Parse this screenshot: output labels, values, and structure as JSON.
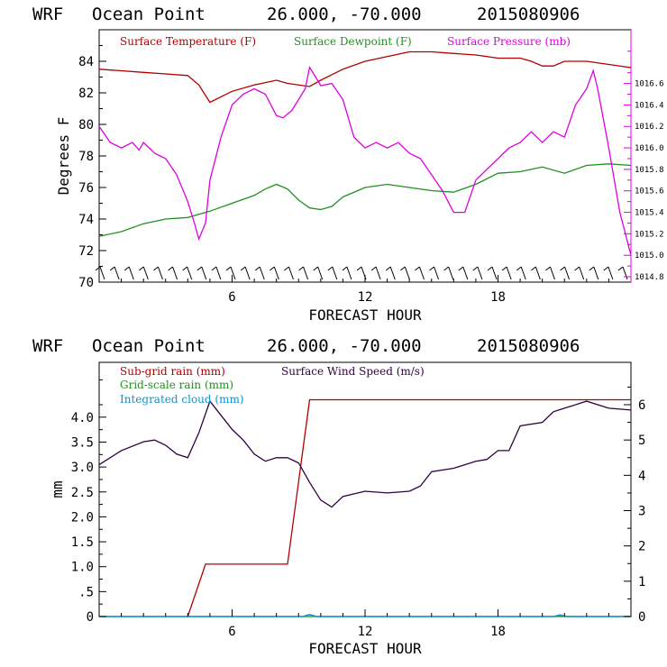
{
  "top_chart": {
    "title": {
      "model": "WRF",
      "location": "Ocean Point",
      "coords": "26.000, -70.000",
      "init": "2015080906"
    },
    "xlabel": "FORECAST HOUR",
    "ylabel": "Degrees F",
    "legend": [
      {
        "label": "Surface Temperature (F)",
        "color": "#b00000"
      },
      {
        "label": "Surface Dewpoint (F)",
        "color": "#209020"
      },
      {
        "label": "Surface Pressure (mb)",
        "color": "#e000e0"
      }
    ]
  },
  "bottom_chart": {
    "title": {
      "model": "WRF",
      "location": "Ocean Point",
      "coords": "26.000, -70.000",
      "init": "2015080906"
    },
    "xlabel": "FORECAST HOUR",
    "ylabel": "mm",
    "legend": [
      {
        "label": "Sub-grid rain (mm)",
        "color": "#b00000"
      },
      {
        "label": "Grid-scale rain (mm)",
        "color": "#209020"
      },
      {
        "label": "Integrated cloud (mm)",
        "color": "#1090d0"
      },
      {
        "label": "Surface Wind Speed (m/s)",
        "color": "#300040"
      }
    ]
  },
  "chart_data": [
    {
      "type": "line",
      "title": "WRF Ocean Point 26.000, -70.000 2015080906",
      "xlabel": "FORECAST HOUR",
      "ylabel": "Degrees F",
      "xlim": [
        0,
        24
      ],
      "ylim": [
        70,
        86
      ],
      "xticks": [
        6,
        12,
        18
      ],
      "yticks": [
        70,
        72,
        74,
        76,
        78,
        80,
        82,
        84
      ],
      "y2label": "Surface Pressure (mb)",
      "y2lim": [
        1014.75,
        1017.1
      ],
      "y2ticks": [
        1014.8,
        1015.0,
        1015.2,
        1015.4,
        1015.6,
        1015.8,
        1016.0,
        1016.2,
        1016.4,
        1016.6
      ],
      "wind_barbs": {
        "count": 37,
        "note": "surface wind barbs along bottom axis"
      },
      "series": [
        {
          "name": "Surface Temperature (F)",
          "color": "#b00000",
          "axis": "left",
          "x": [
            0,
            1,
            2,
            3,
            4,
            4.5,
            5,
            6,
            7,
            8,
            8.5,
            9.5,
            10,
            11,
            12,
            13,
            14,
            14.5,
            15,
            16,
            17,
            18,
            19,
            19.5,
            20,
            20.5,
            21,
            22,
            23,
            24
          ],
          "y": [
            83.5,
            83.4,
            83.3,
            83.2,
            83.1,
            82.5,
            81.4,
            82.1,
            82.5,
            82.8,
            82.6,
            82.4,
            82.8,
            83.5,
            84.0,
            84.3,
            84.6,
            84.6,
            84.6,
            84.5,
            84.4,
            84.2,
            84.2,
            84.0,
            83.7,
            83.7,
            84.0,
            84.0,
            83.8,
            83.6
          ]
        },
        {
          "name": "Surface Dewpoint (F)",
          "color": "#209020",
          "axis": "left",
          "x": [
            0,
            1,
            2,
            3,
            4,
            5,
            6,
            7,
            7.5,
            8,
            8.5,
            9,
            9.5,
            10,
            10.5,
            11,
            12,
            13,
            14,
            15,
            16,
            17,
            18,
            19,
            20,
            21,
            22,
            23,
            24
          ],
          "y": [
            72.9,
            73.2,
            73.7,
            74.0,
            74.1,
            74.5,
            75.0,
            75.5,
            75.9,
            76.2,
            75.9,
            75.2,
            74.7,
            74.6,
            74.8,
            75.4,
            76.0,
            76.2,
            76.0,
            75.8,
            75.7,
            76.2,
            76.9,
            77.0,
            77.3,
            76.9,
            77.4,
            77.5,
            77.4
          ]
        },
        {
          "name": "Surface Pressure (mb)",
          "color": "#e000e0",
          "axis": "right",
          "x": [
            0,
            0.5,
            1,
            1.5,
            1.8,
            2,
            2.5,
            3,
            3.5,
            4,
            4.3,
            4.5,
            4.8,
            5,
            5.5,
            6,
            6.5,
            7,
            7.5,
            8,
            8.3,
            8.7,
            9,
            9.3,
            9.5,
            9.8,
            10,
            10.5,
            11,
            11.5,
            12,
            12.5,
            13,
            13.5,
            14,
            14.5,
            15,
            15.5,
            16,
            16.5,
            17,
            17.5,
            18,
            18.5,
            19,
            19.5,
            20,
            20.5,
            21,
            21.5,
            22,
            22.3,
            22.5,
            23,
            23.5,
            24
          ],
          "y": [
            1016.2,
            1016.05,
            1016.0,
            1016.05,
            1015.98,
            1016.05,
            1015.95,
            1015.9,
            1015.75,
            1015.5,
            1015.3,
            1015.15,
            1015.3,
            1015.7,
            1016.1,
            1016.4,
            1016.5,
            1016.55,
            1016.5,
            1016.3,
            1016.28,
            1016.35,
            1016.45,
            1016.55,
            1016.75,
            1016.65,
            1016.58,
            1016.6,
            1016.45,
            1016.1,
            1016.0,
            1016.05,
            1016.0,
            1016.05,
            1015.95,
            1015.9,
            1015.75,
            1015.6,
            1015.4,
            1015.4,
            1015.7,
            1015.8,
            1015.9,
            1016.0,
            1016.05,
            1016.15,
            1016.05,
            1016.15,
            1016.1,
            1016.4,
            1016.55,
            1016.72,
            1016.55,
            1016.0,
            1015.4,
            1015.0
          ]
        }
      ]
    },
    {
      "type": "line",
      "title": "WRF Ocean Point 26.000, -70.000 2015080906",
      "xlabel": "FORECAST HOUR",
      "ylabel": "mm",
      "xlim": [
        0,
        24
      ],
      "ylim": [
        0,
        5.1
      ],
      "xticks": [
        6,
        12,
        18
      ],
      "yticks": [
        0,
        0.5,
        1.0,
        1.5,
        2.0,
        2.5,
        3.0,
        3.5,
        4.0
      ],
      "y2label": "Surface Wind Speed (m/s)",
      "y2lim": [
        0,
        7.2
      ],
      "y2ticks": [
        0,
        1,
        2,
        3,
        4,
        5,
        6
      ],
      "series": [
        {
          "name": "Sub-grid rain (mm)",
          "color": "#b00000",
          "axis": "left",
          "x": [
            4.0,
            4.8,
            8.5,
            9.5,
            24
          ],
          "y": [
            0.0,
            1.05,
            1.05,
            4.35,
            4.35
          ]
        },
        {
          "name": "Grid-scale rain (mm)",
          "color": "#209020",
          "axis": "left",
          "x": [
            0,
            24
          ],
          "y": [
            0,
            0
          ]
        },
        {
          "name": "Integrated cloud (mm)",
          "color": "#1090d0",
          "axis": "left",
          "x": [
            0,
            9.2,
            9.5,
            9.8,
            20.5,
            20.8,
            21.1,
            24
          ],
          "y": [
            0,
            0,
            0.04,
            0,
            0,
            0.03,
            0,
            0
          ]
        },
        {
          "name": "Surface Wind Speed (m/s)",
          "color": "#300040",
          "axis": "right",
          "x": [
            0,
            1,
            2,
            2.5,
            3,
            3.5,
            4,
            4.5,
            5,
            5.5,
            6,
            6.5,
            7,
            7.5,
            8,
            8.5,
            9,
            9.5,
            10,
            10.5,
            11,
            12,
            13,
            14,
            14.5,
            15,
            16,
            17,
            17.5,
            18,
            18.5,
            19,
            20,
            20.5,
            21,
            22,
            23,
            24
          ],
          "y": [
            4.3,
            4.7,
            4.95,
            5.0,
            4.85,
            4.6,
            4.5,
            5.2,
            6.1,
            5.7,
            5.3,
            5.0,
            4.6,
            4.4,
            4.5,
            4.5,
            4.35,
            3.8,
            3.3,
            3.1,
            3.4,
            3.55,
            3.5,
            3.55,
            3.7,
            4.1,
            4.2,
            4.4,
            4.45,
            4.7,
            4.7,
            5.4,
            5.5,
            5.8,
            5.9,
            6.1,
            5.9,
            5.85
          ]
        }
      ]
    }
  ]
}
